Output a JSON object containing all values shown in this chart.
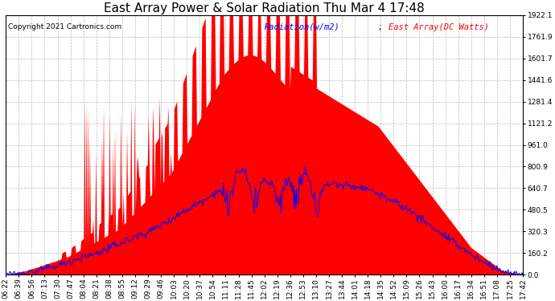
{
  "title": "East Array Power & Solar Radiation Thu Mar 4 17:48",
  "copyright": "Copyright 2021 Cartronics.com",
  "legend_radiation": "Radiation(w/m2)",
  "legend_array": "East Array(DC Watts)",
  "ylabel_right_values": [
    0.0,
    160.2,
    320.3,
    480.5,
    640.7,
    800.9,
    961.0,
    1121.2,
    1281.4,
    1441.6,
    1601.7,
    1761.9,
    1922.1
  ],
  "ymax": 1922.1,
  "ymin": 0.0,
  "background_color": "#ffffff",
  "plot_bg_color": "#ffffff",
  "grid_color": "#bbbbbb",
  "red_color": "#ff0000",
  "blue_color": "#0000ff",
  "title_fontsize": 11,
  "tick_fontsize": 6.5,
  "x_tick_labels": [
    "06:22",
    "06:39",
    "06:56",
    "07:13",
    "07:30",
    "07:47",
    "08:04",
    "08:21",
    "08:38",
    "08:55",
    "09:12",
    "09:29",
    "09:46",
    "10:03",
    "10:20",
    "10:37",
    "10:54",
    "11:11",
    "11:28",
    "11:45",
    "12:02",
    "12:19",
    "12:36",
    "12:53",
    "13:10",
    "13:27",
    "13:44",
    "14:01",
    "14:18",
    "14:35",
    "14:52",
    "15:09",
    "15:26",
    "15:43",
    "16:00",
    "16:17",
    "16:34",
    "16:51",
    "17:08",
    "17:25",
    "17:42"
  ],
  "n_points": 600
}
